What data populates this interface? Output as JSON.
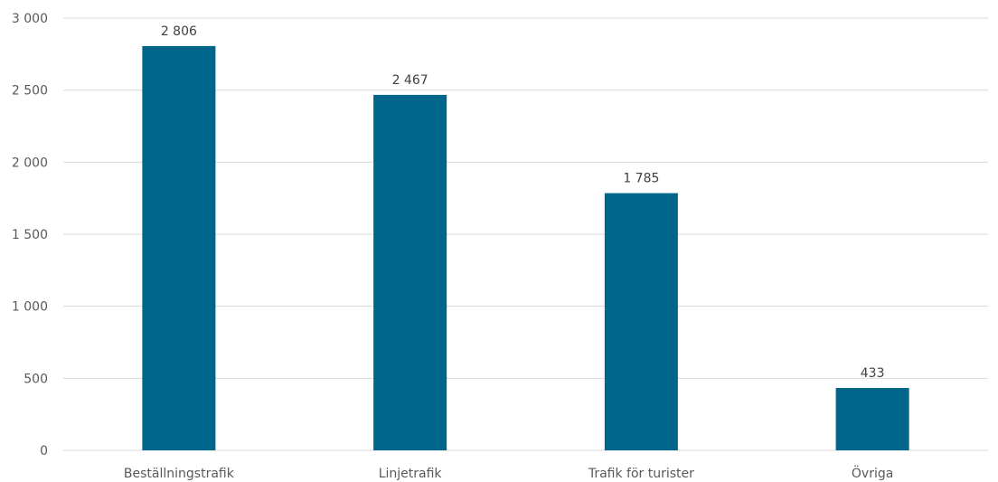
{
  "chart_data": {
    "type": "bar",
    "categories": [
      "Beställningstrafik",
      "Linjetrafik",
      "Trafik för turister",
      "Övriga"
    ],
    "values": [
      2806,
      2467,
      1785,
      433
    ],
    "value_labels": [
      "2 806",
      "2 467",
      "1 785",
      "433"
    ],
    "ylim": [
      0,
      3000
    ],
    "yticks": [
      0,
      500,
      1000,
      1500,
      2000,
      2500,
      3000
    ],
    "ytick_labels": [
      "0",
      "500",
      "1 000",
      "1 500",
      "2 000",
      "2 500",
      "3 000"
    ],
    "title": "",
    "xlabel": "",
    "ylabel": "",
    "grid": "horizontal",
    "legend": "none",
    "bar_color": "#00658A",
    "grid_color": "#D9D9D9",
    "text_color": "#595959"
  }
}
